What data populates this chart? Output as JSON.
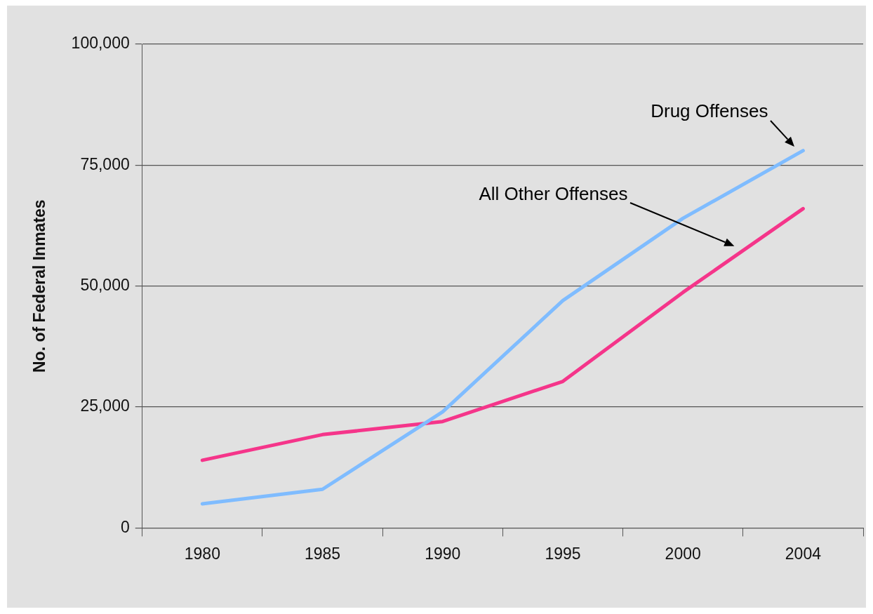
{
  "chart_data": {
    "type": "line",
    "ylabel": "No. of Federal Inmates",
    "categories": [
      "1980",
      "1985",
      "1990",
      "1995",
      "2000",
      "2004"
    ],
    "series": [
      {
        "name": "Drug Offenses",
        "color": "#7fbcff",
        "values": [
          5000,
          8000,
          24000,
          47000,
          64000,
          78000
        ]
      },
      {
        "name": "All Other Offenses",
        "color": "#f5358a",
        "values": [
          14000,
          19300,
          22000,
          30300,
          48700,
          66000
        ]
      }
    ],
    "ylim": [
      0,
      100000
    ],
    "yticks": [
      {
        "value": 0,
        "label": "0"
      },
      {
        "value": 25000,
        "label": "25,000"
      },
      {
        "value": 50000,
        "label": "50,000"
      },
      {
        "value": 75000,
        "label": "75,000"
      },
      {
        "value": 100000,
        "label": "100,000"
      }
    ],
    "grid": "y",
    "legend": false,
    "marker": "none",
    "line_style": "solid"
  }
}
